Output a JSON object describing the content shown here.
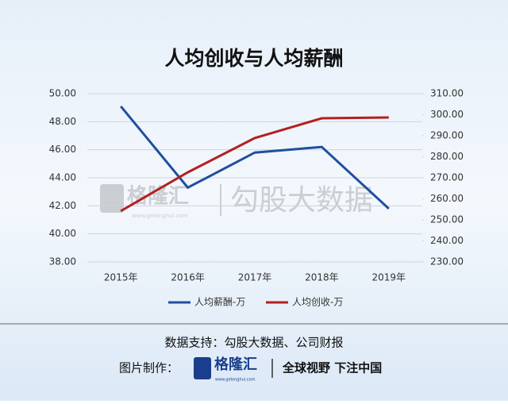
{
  "chart_data": {
    "type": "line",
    "title": "人均创收与人均薪酬",
    "categories": [
      "2015年",
      "2016年",
      "2017年",
      "2018年",
      "2019年"
    ],
    "series": [
      {
        "name": "人均薪酬-万",
        "color": "#1f4f9e",
        "values": [
          49.1,
          43.3,
          45.8,
          46.2,
          41.8
        ]
      },
      {
        "name": "人均创收-万",
        "color": "#b3201f",
        "values": [
          254.2,
          272.6,
          288.9,
          298.3,
          298.7
        ],
        "axis": "y2"
      }
    ],
    "ylim": [
      38,
      50
    ],
    "yticks": [
      {
        "value": 38,
        "label": "38.00"
      },
      {
        "value": 40,
        "label": "40.00"
      },
      {
        "value": 42,
        "label": "42.00"
      },
      {
        "value": 44,
        "label": "44.00"
      },
      {
        "value": 46,
        "label": "46.00"
      },
      {
        "value": 48,
        "label": "48.00"
      },
      {
        "value": 50,
        "label": "50.00"
      }
    ],
    "y2lim": [
      230,
      310
    ],
    "y2ticks": [
      {
        "value": 230,
        "label": "230.00"
      },
      {
        "value": 240,
        "label": "240.00"
      },
      {
        "value": 250,
        "label": "250.00"
      },
      {
        "value": 260,
        "label": "260.00"
      },
      {
        "value": 270,
        "label": "270.00"
      },
      {
        "value": 280,
        "label": "280.00"
      },
      {
        "value": 290,
        "label": "290.00"
      },
      {
        "value": 300,
        "label": "300.00"
      },
      {
        "value": 310,
        "label": "310.00"
      }
    ],
    "grid": true,
    "legend": "bottom"
  },
  "watermark": {
    "brand": "格隆汇",
    "url": "www.gelonghui.com",
    "name": "勾股大数据"
  },
  "footer": {
    "source": "数据支持：勾股大数据、公司财报",
    "maker": "图片制作：",
    "brand": "格隆汇",
    "url": "www.gelonghui.com",
    "slogan": "全球视野 下注中国"
  }
}
